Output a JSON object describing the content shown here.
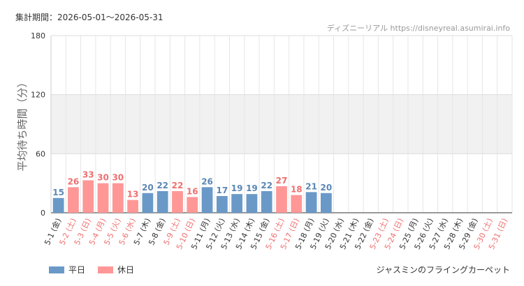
{
  "header": {
    "period_label": "集計期間：2026-05-01〜2026-05-31",
    "source": "ディズニーリアル https://disneyreal.asumirai.info"
  },
  "footer": {
    "attraction_name": "ジャスミンのフライングカーペット"
  },
  "legend": [
    {
      "label": "平日",
      "color": "#6a99c8"
    },
    {
      "label": "休日",
      "color": "#ff9797"
    }
  ],
  "colors": {
    "weekday": "#6a99c8",
    "holiday": "#ff9797",
    "weekday_text": "#5b87b5",
    "holiday_text": "#ef6f6f",
    "band": "#f1f1f1",
    "grid": "#e6e6e6"
  },
  "chart_data": {
    "type": "bar",
    "ylabel": "平均待ち時間（分）",
    "ylim": [
      0,
      180
    ],
    "yticks": [
      0,
      60,
      120,
      180
    ],
    "shaded_band": [
      60,
      120
    ],
    "grid": true,
    "legend_placement": "bottom-left",
    "categories": [
      "5-1 (金)",
      "5-2 (土)",
      "5-3 (日)",
      "5-4 (月)",
      "5-5 (火)",
      "5-6 (水)",
      "5-7 (木)",
      "5-8 (金)",
      "5-9 (土)",
      "5-10 (日)",
      "5-11 (月)",
      "5-12 (火)",
      "5-13 (水)",
      "5-14 (木)",
      "5-15 (金)",
      "5-16 (土)",
      "5-17 (日)",
      "5-18 (月)",
      "5-19 (火)",
      "5-20 (水)",
      "5-21 (木)",
      "5-22 (金)",
      "5-23 (土)",
      "5-24 (日)",
      "5-25 (月)",
      "5-26 (火)",
      "5-27 (水)",
      "5-28 (木)",
      "5-29 (金)",
      "5-30 (土)",
      "5-31 (日)"
    ],
    "day_type": [
      "weekday",
      "holiday",
      "holiday",
      "holiday",
      "holiday",
      "holiday",
      "weekday",
      "weekday",
      "holiday",
      "holiday",
      "weekday",
      "weekday",
      "weekday",
      "weekday",
      "weekday",
      "holiday",
      "holiday",
      "weekday",
      "weekday",
      "weekday",
      "weekday",
      "weekday",
      "holiday",
      "holiday",
      "weekday",
      "weekday",
      "weekday",
      "weekday",
      "weekday",
      "holiday",
      "holiday"
    ],
    "values": [
      15,
      26,
      33,
      30,
      30,
      13,
      20,
      22,
      22,
      16,
      26,
      17,
      19,
      19,
      22,
      27,
      18,
      21,
      20,
      null,
      null,
      null,
      null,
      null,
      null,
      null,
      null,
      null,
      null,
      null,
      null
    ]
  }
}
